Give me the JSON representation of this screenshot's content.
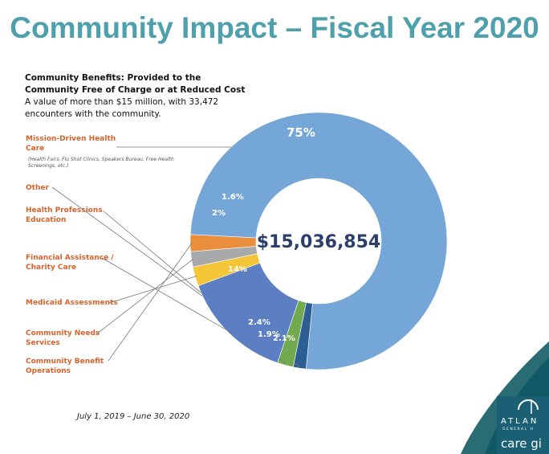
{
  "title": "Community Impact – Fiscal Year 2020",
  "intro": {
    "heading": "Community Benefits: Provided to the Community Free of Charge or at Reduced Cost",
    "body": "A value of more than $15 million, with 33,472 encounters with the community."
  },
  "legend_note": "(Health Fairs, Flu Shot Clinics, Speakers Bureau, Free Health Screenings, etc.)",
  "date_range": "July 1, 2019 – June 30, 2020",
  "center_total": "$15,036,854",
  "logo": {
    "text_top": "ATLAN",
    "text_small": "GENERAL H",
    "tagline": "care gi"
  },
  "colors": {
    "title": "#4ea0ad",
    "legend_text": "#d9622b"
  },
  "chart_data": {
    "type": "pie",
    "style": "donut",
    "total_label": "$15,036,854",
    "slices": [
      {
        "label": "Mission-Driven Health Care",
        "value": 75,
        "value_label": "75%",
        "color": "#74a7d8"
      },
      {
        "label": "Other",
        "value": 1.6,
        "value_label": "1.6%",
        "color": "#2c5d94"
      },
      {
        "label": "Health Professions Education",
        "value": 2,
        "value_label": "2%",
        "color": "#72ab4f"
      },
      {
        "label": "Financial Assistance / Charity Care",
        "value": 14,
        "value_label": "14%",
        "color": "#5b7fc2"
      },
      {
        "label": "Medicaid Assessments",
        "value": 2.4,
        "value_label": "2.4%",
        "color": "#f4c536"
      },
      {
        "label": "Community Needs Services",
        "value": 1.9,
        "value_label": "1.9%",
        "color": "#a7a9ab"
      },
      {
        "label": "Community Benefit Operations",
        "value": 2.1,
        "value_label": "2.1%",
        "color": "#e98e3c"
      }
    ]
  }
}
